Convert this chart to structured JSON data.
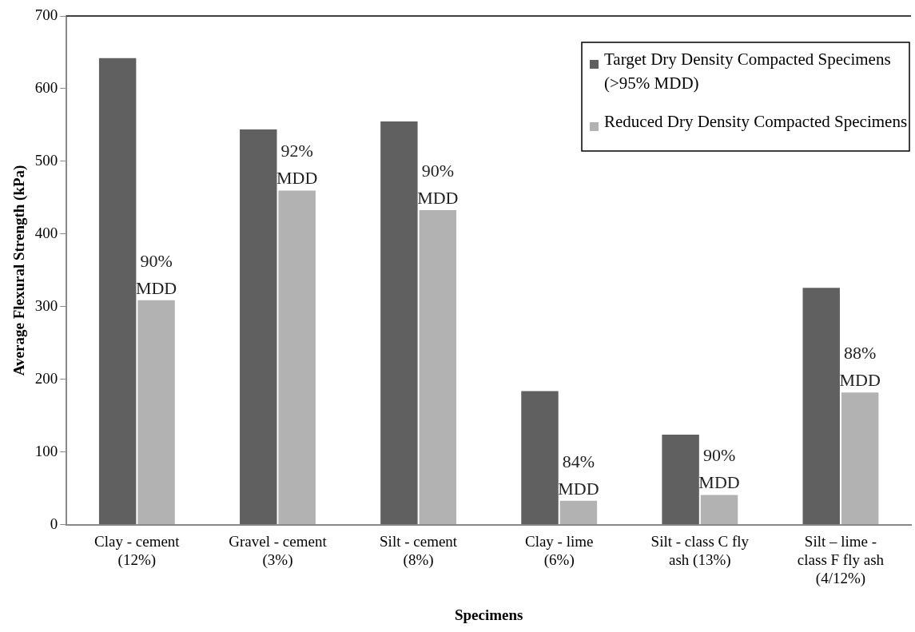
{
  "chart_data": {
    "type": "bar",
    "xlabel": "Specimens",
    "ylabel": "Average Flexural Strength (kPa)",
    "categories": [
      "Clay - cement\n(12%)",
      "Gravel - cement\n(3%)",
      "Silt - cement\n(8%)",
      "Clay - lime\n(6%)",
      "Silt - class C fly\nash (13%)",
      "Silt – lime -\nclass F fly ash\n(4/12%)"
    ],
    "series": [
      {
        "name": "Target Dry Density Compacted Specimens (>95% MDD)",
        "color": "#606060",
        "values": [
          643,
          545,
          556,
          185,
          125,
          327
        ]
      },
      {
        "name": "Reduced Dry Density Compacted Specimens",
        "color": "#b2b2b2",
        "values": [
          310,
          461,
          434,
          34,
          42,
          183
        ]
      }
    ],
    "annotations": [
      {
        "text": "90%\nMDD",
        "x": "Clay - cement\n(12%)",
        "y": 310
      },
      {
        "text": "92%\nMDD",
        "x": "Gravel - cement\n(3%)",
        "y": 461
      },
      {
        "text": "90%\nMDD",
        "x": "Silt - cement\n(8%)",
        "y": 434
      },
      {
        "text": "84%\nMDD",
        "x": "Clay - lime\n(6%)",
        "y": 34
      },
      {
        "text": "90%\nMDD",
        "x": "Silt - class C fly\nash (13%)",
        "y": 42
      },
      {
        "text": "88%\nMDD",
        "x": "Silt – lime -\nclass F fly ash\n(4/12%)",
        "y": 183
      }
    ],
    "ylim": [
      0,
      700
    ],
    "yticks": [
      0,
      100,
      200,
      300,
      400,
      500,
      600,
      700
    ],
    "grid": false,
    "legend": "top right"
  }
}
